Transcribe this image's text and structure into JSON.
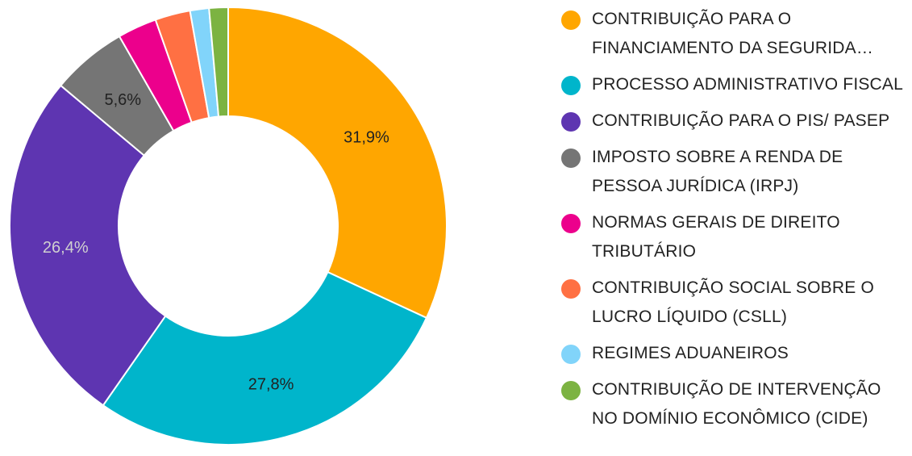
{
  "chart_data": {
    "type": "pie",
    "style": "donut",
    "title": "",
    "legend_position": "right",
    "series": [
      {
        "name": "CONTRIBUIÇÃO PARA O FINANCIAMENTO DA SEGURIDA…",
        "value": 31.9,
        "label": "31,9%",
        "color": "#FFA600",
        "label_color": "#222222"
      },
      {
        "name": "PROCESSO ADMINISTRATIVO FISCAL",
        "value": 27.8,
        "label": "27,8%",
        "color": "#00B5CB",
        "label_color": "#222222"
      },
      {
        "name": "CONTRIBUIÇÃO PARA O PIS/ PASEP",
        "value": 26.4,
        "label": "26,4%",
        "color": "#5E35B1",
        "label_color": "#D0D0D0"
      },
      {
        "name": "IMPOSTO SOBRE A RENDA DE PESSOA JURÍDICA (IRPJ)",
        "value": 5.6,
        "label": "5,6%",
        "color": "#757575",
        "label_color": "#222222"
      },
      {
        "name": "NORMAS GERAIS DE DIREITO TRIBUTÁRIO",
        "value": 2.9,
        "label": "",
        "color": "#EC008C",
        "label_color": "#222222"
      },
      {
        "name": "CONTRIBUIÇÃO SOCIAL SOBRE O LUCRO LÍQUIDO (CSLL)",
        "value": 2.6,
        "label": "",
        "color": "#FF7043",
        "label_color": "#222222"
      },
      {
        "name": "REGIMES ADUANEIROS",
        "value": 1.4,
        "label": "",
        "color": "#81D4FA",
        "label_color": "#222222"
      },
      {
        "name": "CONTRIBUIÇÃO DE INTERVENÇÃO NO DOMÍNIO ECONÔMICO (CIDE)",
        "value": 1.4,
        "label": "",
        "color": "#7CB342",
        "label_color": "#222222"
      }
    ]
  }
}
